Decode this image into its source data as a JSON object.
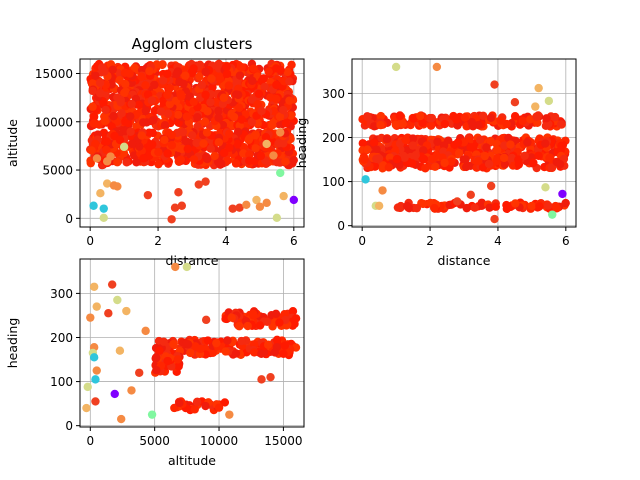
{
  "chart_data": [
    {
      "type": "scatter",
      "title": "Agglom clusters",
      "xlabel": "distance",
      "ylabel": "altitude",
      "xlim": [
        -0.3,
        6.3
      ],
      "ylim": [
        -900,
        16500
      ],
      "xticks": [
        0,
        2,
        4,
        6
      ],
      "yticks": [
        0,
        5000,
        10000,
        15000
      ],
      "grid": true,
      "dense_regions": [
        {
          "x": [
            0.0,
            6.0
          ],
          "y": [
            13000,
            16000
          ],
          "color": "#ff1a00"
        },
        {
          "x": [
            0.0,
            6.0
          ],
          "y": [
            9500,
            13000
          ],
          "color": "#ff1a00"
        },
        {
          "x": [
            0.0,
            6.0
          ],
          "y": [
            5500,
            9000
          ],
          "color": "#ff2a00"
        }
      ],
      "points": [
        {
          "x": 0.1,
          "y": 1300,
          "color": "#2fc6dc"
        },
        {
          "x": 0.4,
          "y": 1000,
          "color": "#2fc6dc"
        },
        {
          "x": 0.3,
          "y": 2600,
          "color": "#f3b463"
        },
        {
          "x": 0.5,
          "y": 3600,
          "color": "#f3b463"
        },
        {
          "x": 0.4,
          "y": 50,
          "color": "#d4dc8a"
        },
        {
          "x": 1.0,
          "y": 7400,
          "color": "#d4dc8a"
        },
        {
          "x": 0.7,
          "y": 3400,
          "color": "#f58a43"
        },
        {
          "x": 0.8,
          "y": 3300,
          "color": "#f58a43"
        },
        {
          "x": 1.7,
          "y": 2400,
          "color": "#f04020"
        },
        {
          "x": 2.6,
          "y": 2700,
          "color": "#f04020"
        },
        {
          "x": 2.5,
          "y": 1100,
          "color": "#f04020"
        },
        {
          "x": 2.7,
          "y": 1300,
          "color": "#f04020"
        },
        {
          "x": 3.2,
          "y": 3500,
          "color": "#f04020"
        },
        {
          "x": 3.4,
          "y": 3800,
          "color": "#f04020"
        },
        {
          "x": 2.4,
          "y": -100,
          "color": "#f04020"
        },
        {
          "x": 4.2,
          "y": 1000,
          "color": "#f04020"
        },
        {
          "x": 4.4,
          "y": 1100,
          "color": "#f04020"
        },
        {
          "x": 4.6,
          "y": 1400,
          "color": "#f58a43"
        },
        {
          "x": 4.9,
          "y": 1900,
          "color": "#f3b463"
        },
        {
          "x": 5.0,
          "y": 1200,
          "color": "#f58a43"
        },
        {
          "x": 5.2,
          "y": 1600,
          "color": "#f58a43"
        },
        {
          "x": 5.5,
          "y": 50,
          "color": "#d4dc8a"
        },
        {
          "x": 5.6,
          "y": 4700,
          "color": "#80f7a0"
        },
        {
          "x": 5.7,
          "y": 2300,
          "color": "#f3b463"
        },
        {
          "x": 6.0,
          "y": 1900,
          "color": "#8000ff"
        },
        {
          "x": 0.5,
          "y": 5900,
          "color": "#f58a43"
        },
        {
          "x": 0.6,
          "y": 6400,
          "color": "#f58a43"
        },
        {
          "x": 5.4,
          "y": 6500,
          "color": "#f58a43"
        },
        {
          "x": 5.2,
          "y": 7700,
          "color": "#f3b463"
        },
        {
          "x": 5.6,
          "y": 8900,
          "color": "#f58a43"
        },
        {
          "x": 0.2,
          "y": 6200,
          "color": "#f58a43"
        }
      ]
    },
    {
      "type": "scatter",
      "title": "",
      "xlabel": "distance",
      "ylabel": "heading",
      "xlim": [
        -0.3,
        6.3
      ],
      "ylim": [
        -3,
        378
      ],
      "xticks": [
        0,
        2,
        4,
        6
      ],
      "yticks": [
        0,
        100,
        200,
        300
      ],
      "grid": true,
      "dense_regions": [
        {
          "x": [
            0.0,
            6.0
          ],
          "y": [
            225,
            250
          ],
          "color": "#ff1a00"
        },
        {
          "x": [
            0.0,
            6.0
          ],
          "y": [
            160,
            200
          ],
          "color": "#ff1a00"
        },
        {
          "x": [
            0.0,
            6.0
          ],
          "y": [
            130,
            160
          ],
          "color": "#ff2a00"
        },
        {
          "x": [
            1.0,
            6.0
          ],
          "y": [
            38,
            52
          ],
          "color": "#ff1a00"
        }
      ],
      "points": [
        {
          "x": 1.0,
          "y": 360,
          "color": "#d4dc8a"
        },
        {
          "x": 2.2,
          "y": 360,
          "color": "#f58a43"
        },
        {
          "x": 3.9,
          "y": 320,
          "color": "#f04020"
        },
        {
          "x": 5.2,
          "y": 312,
          "color": "#f3b463"
        },
        {
          "x": 5.5,
          "y": 283,
          "color": "#d4dc8a"
        },
        {
          "x": 5.1,
          "y": 270,
          "color": "#f3b463"
        },
        {
          "x": 0.1,
          "y": 105,
          "color": "#2fc6dc"
        },
        {
          "x": 0.4,
          "y": 45,
          "color": "#d4dc8a"
        },
        {
          "x": 0.5,
          "y": 45,
          "color": "#f3b463"
        },
        {
          "x": 0.6,
          "y": 80,
          "color": "#f58a43"
        },
        {
          "x": 3.9,
          "y": 15,
          "color": "#f04020"
        },
        {
          "x": 5.4,
          "y": 87,
          "color": "#d4dc8a"
        },
        {
          "x": 5.6,
          "y": 25,
          "color": "#80f7a0"
        },
        {
          "x": 5.9,
          "y": 72,
          "color": "#8000ff"
        },
        {
          "x": 3.8,
          "y": 90,
          "color": "#f04020"
        },
        {
          "x": 4.5,
          "y": 280,
          "color": "#f04020"
        },
        {
          "x": 2.8,
          "y": 55,
          "color": "#f04020"
        },
        {
          "x": 3.2,
          "y": 70,
          "color": "#f04020"
        }
      ]
    },
    {
      "type": "scatter",
      "title": "",
      "xlabel": "altitude",
      "ylabel": "heading",
      "xlim": [
        -800,
        16600
      ],
      "ylim": [
        -3,
        378
      ],
      "xticks": [
        0,
        5000,
        10000,
        15000
      ],
      "yticks": [
        0,
        100,
        200,
        300
      ],
      "grid": true,
      "dense_regions": [
        {
          "x": [
            10500,
            16000
          ],
          "y": [
            225,
            260
          ],
          "color": "#ff2a00"
        },
        {
          "x": [
            5000,
            16000
          ],
          "y": [
            160,
            195
          ],
          "color": "#ff1a00"
        },
        {
          "x": [
            5000,
            7000
          ],
          "y": [
            120,
            160
          ],
          "color": "#ff3a00"
        },
        {
          "x": [
            6500,
            10500
          ],
          "y": [
            35,
            55
          ],
          "color": "#ff1a00"
        }
      ],
      "points": [
        {
          "x": 6600,
          "y": 360,
          "color": "#f58a43"
        },
        {
          "x": 7500,
          "y": 360,
          "color": "#d4dc8a"
        },
        {
          "x": 300,
          "y": 315,
          "color": "#f3b463"
        },
        {
          "x": 1700,
          "y": 320,
          "color": "#f04020"
        },
        {
          "x": 2100,
          "y": 285,
          "color": "#d4dc8a"
        },
        {
          "x": 500,
          "y": 270,
          "color": "#f3b463"
        },
        {
          "x": 2800,
          "y": 260,
          "color": "#f3b463"
        },
        {
          "x": 1400,
          "y": 255,
          "color": "#f04020"
        },
        {
          "x": 0,
          "y": 245,
          "color": "#f58a43"
        },
        {
          "x": 300,
          "y": 178,
          "color": "#f58a43"
        },
        {
          "x": 200,
          "y": 165,
          "color": "#d4dc8a"
        },
        {
          "x": 300,
          "y": 155,
          "color": "#2fc6dc"
        },
        {
          "x": 400,
          "y": 105,
          "color": "#2fc6dc"
        },
        {
          "x": 500,
          "y": 125,
          "color": "#f58a43"
        },
        {
          "x": 2300,
          "y": 170,
          "color": "#f3b463"
        },
        {
          "x": -200,
          "y": 88,
          "color": "#d4dc8a"
        },
        {
          "x": -300,
          "y": 40,
          "color": "#f3b463"
        },
        {
          "x": 400,
          "y": 55,
          "color": "#f04020"
        },
        {
          "x": 1900,
          "y": 72,
          "color": "#8000ff"
        },
        {
          "x": 2400,
          "y": 15,
          "color": "#f58a43"
        },
        {
          "x": 3200,
          "y": 80,
          "color": "#f58a43"
        },
        {
          "x": 3800,
          "y": 120,
          "color": "#f04020"
        },
        {
          "x": 4800,
          "y": 25,
          "color": "#80f7a0"
        },
        {
          "x": 4300,
          "y": 215,
          "color": "#f58a43"
        },
        {
          "x": 10800,
          "y": 25,
          "color": "#f58a43"
        },
        {
          "x": 13300,
          "y": 105,
          "color": "#f04020"
        },
        {
          "x": 14000,
          "y": 110,
          "color": "#f04020"
        },
        {
          "x": 9000,
          "y": 240,
          "color": "#f04020"
        }
      ]
    }
  ]
}
